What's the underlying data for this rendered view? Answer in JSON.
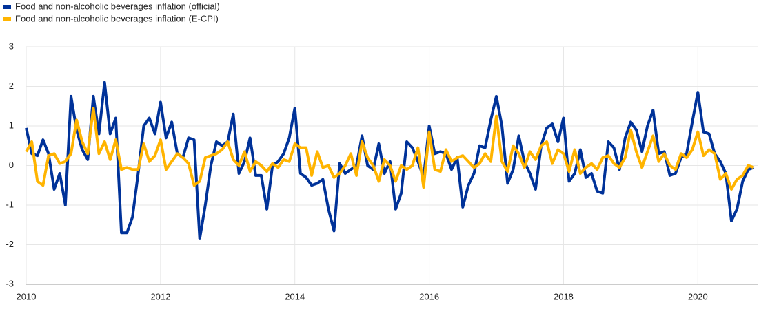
{
  "chart_data": {
    "type": "line",
    "x": [
      2010,
      2010.083,
      2010.167,
      2010.25,
      2010.333,
      2010.417,
      2010.5,
      2010.583,
      2010.667,
      2010.75,
      2010.833,
      2010.917,
      2011,
      2011.083,
      2011.167,
      2011.25,
      2011.333,
      2011.417,
      2011.5,
      2011.583,
      2011.667,
      2011.75,
      2011.833,
      2011.917,
      2012,
      2012.083,
      2012.167,
      2012.25,
      2012.333,
      2012.417,
      2012.5,
      2012.583,
      2012.667,
      2012.75,
      2012.833,
      2012.917,
      2013,
      2013.083,
      2013.167,
      2013.25,
      2013.333,
      2013.417,
      2013.5,
      2013.583,
      2013.667,
      2013.75,
      2013.833,
      2013.917,
      2014,
      2014.083,
      2014.167,
      2014.25,
      2014.333,
      2014.417,
      2014.5,
      2014.583,
      2014.667,
      2014.75,
      2014.833,
      2014.917,
      2015,
      2015.083,
      2015.167,
      2015.25,
      2015.333,
      2015.417,
      2015.5,
      2015.583,
      2015.667,
      2015.75,
      2015.833,
      2015.917,
      2016,
      2016.083,
      2016.167,
      2016.25,
      2016.333,
      2016.417,
      2016.5,
      2016.583,
      2016.667,
      2016.75,
      2016.833,
      2016.917,
      2017,
      2017.083,
      2017.167,
      2017.25,
      2017.333,
      2017.417,
      2017.5,
      2017.583,
      2017.667,
      2017.75,
      2017.833,
      2017.917,
      2018,
      2018.083,
      2018.167,
      2018.25,
      2018.333,
      2018.417,
      2018.5,
      2018.583,
      2018.667,
      2018.75,
      2018.833,
      2018.917,
      2019,
      2019.083,
      2019.167,
      2019.25,
      2019.333,
      2019.417,
      2019.5,
      2019.583,
      2019.667,
      2019.75,
      2019.833,
      2019.917,
      2020,
      2020.083,
      2020.167,
      2020.25,
      2020.333,
      2020.417,
      2020.5,
      2020.583,
      2020.667,
      2020.75,
      2020.833
    ],
    "series": [
      {
        "name": "Food and non-alcoholic beverages inflation (official)",
        "color": "#003299",
        "values": [
          0.95,
          0.3,
          0.25,
          0.65,
          0.3,
          -0.6,
          -0.2,
          -1.0,
          1.75,
          0.9,
          0.4,
          0.15,
          1.75,
          0.8,
          2.1,
          0.8,
          1.2,
          -1.7,
          -1.7,
          -1.3,
          -0.2,
          1.0,
          1.2,
          0.8,
          1.6,
          0.7,
          1.1,
          0.3,
          0.2,
          0.7,
          0.65,
          -1.85,
          -1.0,
          0.0,
          0.6,
          0.5,
          0.6,
          1.3,
          -0.2,
          0.1,
          0.7,
          -0.25,
          -0.25,
          -1.1,
          0.0,
          0.1,
          0.3,
          0.7,
          1.45,
          -0.2,
          -0.3,
          -0.5,
          -0.45,
          -0.35,
          -1.1,
          -1.65,
          0.05,
          -0.2,
          -0.1,
          0.0,
          0.75,
          0.0,
          -0.1,
          0.55,
          -0.2,
          0.1,
          -1.1,
          -0.7,
          0.6,
          0.45,
          0.1,
          -0.3,
          1.0,
          0.3,
          0.35,
          0.3,
          -0.1,
          0.2,
          -1.05,
          -0.5,
          -0.2,
          0.5,
          0.45,
          1.15,
          1.75,
          1.0,
          -0.45,
          -0.1,
          0.75,
          0.1,
          -0.2,
          -0.6,
          0.5,
          0.95,
          1.05,
          0.6,
          1.2,
          -0.4,
          -0.2,
          0.4,
          -0.3,
          -0.2,
          -0.65,
          -0.7,
          0.6,
          0.45,
          -0.1,
          0.7,
          1.1,
          0.9,
          0.35,
          1.0,
          1.4,
          0.3,
          0.35,
          -0.25,
          -0.2,
          0.2,
          0.3,
          1.1,
          1.85,
          0.85,
          0.8,
          0.3,
          0.1,
          -0.2,
          -1.4,
          -1.1,
          -0.4,
          -0.1,
          -0.05
        ]
      },
      {
        "name": "Food and non-alcoholic beverages inflation (E-CPI)",
        "color": "#ffb400",
        "values": [
          0.35,
          0.6,
          -0.4,
          -0.5,
          0.25,
          0.3,
          0.05,
          0.1,
          0.3,
          1.15,
          0.6,
          0.3,
          1.45,
          0.3,
          0.6,
          0.15,
          0.65,
          -0.1,
          -0.05,
          -0.1,
          -0.1,
          0.55,
          0.1,
          0.25,
          0.65,
          -0.1,
          0.1,
          0.3,
          0.2,
          0.05,
          -0.5,
          -0.4,
          0.2,
          0.25,
          0.3,
          0.4,
          0.6,
          0.15,
          0.0,
          0.35,
          -0.15,
          0.1,
          0.0,
          -0.15,
          0.05,
          -0.05,
          0.15,
          0.1,
          0.55,
          0.45,
          0.45,
          -0.25,
          0.35,
          -0.05,
          0.0,
          -0.3,
          -0.2,
          0.0,
          0.3,
          -0.25,
          0.6,
          0.2,
          0.0,
          -0.4,
          0.15,
          0.0,
          -0.4,
          0.0,
          -0.1,
          0.0,
          0.45,
          -0.55,
          0.85,
          -0.1,
          -0.15,
          0.4,
          0.1,
          0.2,
          0.25,
          0.1,
          -0.05,
          0.05,
          0.3,
          0.1,
          1.25,
          0.1,
          -0.15,
          0.5,
          0.3,
          -0.05,
          0.35,
          0.15,
          0.5,
          0.6,
          0.05,
          0.4,
          0.3,
          -0.15,
          0.4,
          -0.2,
          -0.05,
          0.05,
          -0.1,
          0.2,
          0.25,
          0.05,
          -0.05,
          0.2,
          0.9,
          0.35,
          -0.05,
          0.35,
          0.75,
          0.1,
          0.3,
          0.0,
          -0.1,
          0.3,
          0.2,
          0.4,
          0.85,
          0.25,
          0.4,
          0.3,
          -0.35,
          -0.2,
          -0.6,
          -0.35,
          -0.25,
          0.0,
          -0.05
        ]
      }
    ],
    "xlim": [
      2010,
      2020.9
    ],
    "xticks": [
      2010,
      2012,
      2014,
      2016,
      2018,
      2020
    ],
    "ylim": [
      -3,
      3
    ],
    "yticks": [
      -3,
      -2,
      -1,
      0,
      1,
      2,
      3
    ],
    "grid": true,
    "legend": "top-left"
  }
}
